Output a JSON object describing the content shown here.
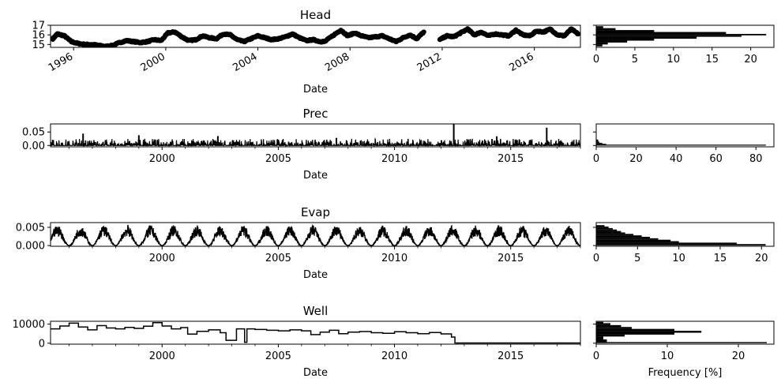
{
  "chart_data": [
    {
      "type": "scatter",
      "title": "Head",
      "xlabel": "Date",
      "xlim": [
        1995.0,
        2018.0
      ],
      "ylim": [
        14.7,
        17.0
      ],
      "xticks": [
        1996,
        2000,
        2004,
        2008,
        2012,
        2016
      ],
      "xtick_labels": [
        "1996",
        "2000",
        "2004",
        "2008",
        "2012",
        "2016"
      ],
      "xtick_rotation": 30,
      "yticks": [
        15,
        16,
        17
      ],
      "ytick_labels": [
        "15",
        "16",
        "17"
      ],
      "series": [
        {
          "x": [
            1995.1,
            1995.3,
            1995.6,
            1995.9,
            1996.2,
            1996.5,
            1996.8,
            1997.1,
            1997.4,
            1997.7,
            1998.0,
            1998.3,
            1998.6,
            1998.9,
            1999.2,
            1999.5,
            1999.8,
            2000.1,
            2000.4,
            2000.7,
            2001.0,
            2001.3,
            2001.6,
            2001.9,
            2002.2,
            2002.5,
            2002.8,
            2003.1,
            2003.4,
            2003.7,
            2004.0,
            2004.3,
            2004.6,
            2004.9,
            2005.2,
            2005.5,
            2005.8,
            2006.1,
            2006.4,
            2006.7,
            2006.9,
            2007.3,
            2007.6,
            2007.9,
            2008.2,
            2008.5,
            2008.8,
            2009.1,
            2009.4,
            2009.7,
            2010.0,
            2010.3,
            2010.6,
            2010.9,
            2011.2,
            2011.9,
            2012.2,
            2012.5,
            2012.8,
            2013.1,
            2013.4,
            2013.7,
            2014.0,
            2014.3,
            2014.6,
            2014.9,
            2015.2,
            2015.5,
            2015.8,
            2016.1,
            2016.4,
            2016.7,
            2017.0,
            2017.3,
            2017.6,
            2017.9
          ],
          "y": [
            15.6,
            16.1,
            15.9,
            15.3,
            15.1,
            15.0,
            15.0,
            14.9,
            14.8,
            14.9,
            15.2,
            15.4,
            15.3,
            15.2,
            15.3,
            15.5,
            15.4,
            16.2,
            16.3,
            15.8,
            15.4,
            15.5,
            15.9,
            15.7,
            15.6,
            16.1,
            16.0,
            15.5,
            15.3,
            15.6,
            15.9,
            15.7,
            15.5,
            15.6,
            15.8,
            16.1,
            15.7,
            15.4,
            15.5,
            15.3,
            15.3,
            16.0,
            16.5,
            15.9,
            16.2,
            15.9,
            15.7,
            15.8,
            15.9,
            15.6,
            15.3,
            15.7,
            16.0,
            15.6,
            16.3,
            15.5,
            15.9,
            15.8,
            16.2,
            16.6,
            16.0,
            16.3,
            15.9,
            16.1,
            16.0,
            15.9,
            16.5,
            16.0,
            15.9,
            16.4,
            16.3,
            16.6,
            16.0,
            15.9,
            16.6,
            16.1
          ]
        }
      ],
      "histogram": {
        "xlim": [
          0,
          23
        ],
        "xticks": [
          0,
          5,
          10,
          15,
          20
        ],
        "bins": [
          {
            "lo": 14.8,
            "hi": 15.0,
            "freq": 0.8
          },
          {
            "lo": 15.0,
            "hi": 15.2,
            "freq": 1.5
          },
          {
            "lo": 15.2,
            "hi": 15.4,
            "freq": 4.0
          },
          {
            "lo": 15.4,
            "hi": 15.6,
            "freq": 7.5
          },
          {
            "lo": 15.6,
            "hi": 15.8,
            "freq": 13.0
          },
          {
            "lo": 15.8,
            "hi": 15.95,
            "freq": 18.8
          },
          {
            "lo": 15.95,
            "hi": 16.1,
            "freq": 22.0
          },
          {
            "lo": 16.1,
            "hi": 16.3,
            "freq": 16.8
          },
          {
            "lo": 16.3,
            "hi": 16.5,
            "freq": 7.5
          },
          {
            "lo": 16.5,
            "hi": 16.7,
            "freq": 2.5
          },
          {
            "lo": 16.7,
            "hi": 16.9,
            "freq": 0.9
          }
        ]
      }
    },
    {
      "type": "line",
      "title": "Prec",
      "xlabel": "Date",
      "xlim": [
        1995.2,
        2018.0
      ],
      "ylim": [
        -0.005,
        0.08
      ],
      "xticks": [
        2000,
        2005,
        2010,
        2015
      ],
      "xtick_labels": [
        "2000",
        "2005",
        "2010",
        "2015"
      ],
      "yticks": [
        0.0,
        0.05
      ],
      "ytick_labels": [
        "0.00",
        "0.05"
      ],
      "series": [
        {
          "x": [
            1995.2,
            1996.5,
            1996.6,
            1997.0,
            1998.0,
            1998.9,
            1999.0,
            2000.0,
            2001.5,
            2002.3,
            2002.4,
            2003.0,
            2004.0,
            2005.0,
            2006.0,
            2007.0,
            2007.5,
            2008.0,
            2009.0,
            2010.0,
            2011.0,
            2012.0,
            2012.5,
            2012.55,
            2013.0,
            2014.0,
            2014.4,
            2015.0,
            2016.0,
            2016.5,
            2016.55,
            2017.0,
            2018.0
          ],
          "y": [
            0.004,
            0.004,
            0.044,
            0.005,
            0.005,
            0.01,
            0.038,
            0.005,
            0.005,
            0.005,
            0.035,
            0.005,
            0.004,
            0.005,
            0.004,
            0.005,
            0.028,
            0.005,
            0.005,
            0.004,
            0.005,
            0.004,
            0.004,
            0.08,
            0.004,
            0.004,
            0.034,
            0.004,
            0.005,
            0.005,
            0.066,
            0.004,
            0.004
          ],
          "noise_amplitude": 0.025
        }
      ],
      "histogram": {
        "xlim": [
          0,
          89
        ],
        "xticks": [
          0,
          20,
          40,
          60,
          80
        ],
        "bins": [
          {
            "lo": 0.0,
            "hi": 0.003,
            "freq": 85.0
          },
          {
            "lo": 0.003,
            "hi": 0.006,
            "freq": 5.0
          },
          {
            "lo": 0.006,
            "hi": 0.01,
            "freq": 3.0
          },
          {
            "lo": 0.01,
            "hi": 0.015,
            "freq": 1.5
          },
          {
            "lo": 0.015,
            "hi": 0.022,
            "freq": 1.0
          }
        ]
      }
    },
    {
      "type": "line",
      "title": "Evap",
      "xlabel": "Date",
      "xlim": [
        1995.2,
        2018.0
      ],
      "ylim": [
        -0.0002,
        0.0063
      ],
      "xticks": [
        2000,
        2005,
        2010,
        2015
      ],
      "xtick_labels": [
        "2000",
        "2005",
        "2010",
        "2015"
      ],
      "yticks": [
        0.0,
        0.005
      ],
      "ytick_labels": [
        "0.000",
        "0.005"
      ],
      "series": [
        {
          "pattern": "annual",
          "x_start": 1995.2,
          "x_end": 2018.0,
          "min": 0.0,
          "max": 0.0056,
          "peak_phase": 0.5
        }
      ],
      "histogram": {
        "xlim": [
          0,
          21.5
        ],
        "xticks": [
          0,
          5,
          10,
          15,
          20
        ],
        "bins": [
          {
            "lo": 0.0,
            "hi": 0.0004,
            "freq": 20.5
          },
          {
            "lo": 0.0004,
            "hi": 0.0008,
            "freq": 17.0
          },
          {
            "lo": 0.0008,
            "hi": 0.0012,
            "freq": 10.0
          },
          {
            "lo": 0.0012,
            "hi": 0.0016,
            "freq": 9.0
          },
          {
            "lo": 0.0016,
            "hi": 0.002,
            "freq": 7.5
          },
          {
            "lo": 0.002,
            "hi": 0.0024,
            "freq": 6.5
          },
          {
            "lo": 0.0024,
            "hi": 0.0028,
            "freq": 5.5
          },
          {
            "lo": 0.0028,
            "hi": 0.0032,
            "freq": 4.5
          },
          {
            "lo": 0.0032,
            "hi": 0.0036,
            "freq": 3.5
          },
          {
            "lo": 0.0036,
            "hi": 0.004,
            "freq": 3.0
          },
          {
            "lo": 0.004,
            "hi": 0.0044,
            "freq": 2.5
          },
          {
            "lo": 0.0044,
            "hi": 0.0048,
            "freq": 2.0
          },
          {
            "lo": 0.0048,
            "hi": 0.0052,
            "freq": 1.5
          },
          {
            "lo": 0.0052,
            "hi": 0.0056,
            "freq": 1.0
          }
        ]
      }
    },
    {
      "type": "line",
      "title": "Well",
      "xlabel": "Date",
      "xlim": [
        1995.2,
        2018.0
      ],
      "ylim": [
        -500,
        11500
      ],
      "xticks": [
        2000,
        2005,
        2010,
        2015
      ],
      "xtick_labels": [
        "2000",
        "2005",
        "2010",
        "2015"
      ],
      "yticks": [
        0,
        10000
      ],
      "ytick_labels": [
        "0",
        "10000"
      ],
      "series": [
        {
          "step": true,
          "x": [
            1995.2,
            1995.6,
            1996.0,
            1996.4,
            1996.8,
            1997.2,
            1997.6,
            1998.0,
            1998.4,
            1998.8,
            1999.2,
            1999.6,
            2000.0,
            2000.4,
            2000.8,
            2001.1,
            2001.5,
            2002.0,
            2002.5,
            2002.75,
            2003.2,
            2003.55,
            2003.65,
            2004.0,
            2004.5,
            2005.0,
            2005.5,
            2006.0,
            2006.4,
            2006.8,
            2007.2,
            2007.6,
            2008.0,
            2008.5,
            2009.0,
            2009.5,
            2010.0,
            2010.5,
            2011.0,
            2011.5,
            2012.0,
            2012.45,
            2012.6,
            2018.0
          ],
          "y": [
            7500,
            9000,
            10500,
            8500,
            7000,
            9200,
            8000,
            7500,
            8300,
            7800,
            8900,
            10800,
            9000,
            7500,
            8200,
            4800,
            6200,
            7000,
            5500,
            1500,
            7500,
            500,
            7500,
            7200,
            6800,
            6500,
            7000,
            6500,
            4500,
            5800,
            6800,
            5000,
            5800,
            6100,
            5500,
            5200,
            6000,
            5500,
            5000,
            5600,
            4900,
            3200,
            100,
            100
          ]
        }
      ],
      "histogram": {
        "xlim": [
          0,
          25
        ],
        "xticks": [
          0,
          10,
          20
        ],
        "xlabel": "Frequency [%]",
        "bins": [
          {
            "lo": 0,
            "hi": 600,
            "freq": 24.0
          },
          {
            "lo": 600,
            "hi": 2000,
            "freq": 1.5
          },
          {
            "lo": 2000,
            "hi": 3500,
            "freq": 1.0
          },
          {
            "lo": 3500,
            "hi": 4500,
            "freq": 4.0
          },
          {
            "lo": 4500,
            "hi": 5500,
            "freq": 11.0
          },
          {
            "lo": 5500,
            "hi": 6500,
            "freq": 14.8
          },
          {
            "lo": 6500,
            "hi": 7500,
            "freq": 11.0
          },
          {
            "lo": 7500,
            "hi": 8500,
            "freq": 5.0
          },
          {
            "lo": 8500,
            "hi": 9500,
            "freq": 3.5
          },
          {
            "lo": 9500,
            "hi": 10500,
            "freq": 2.0
          },
          {
            "lo": 10500,
            "hi": 11200,
            "freq": 1.0
          }
        ]
      }
    }
  ]
}
